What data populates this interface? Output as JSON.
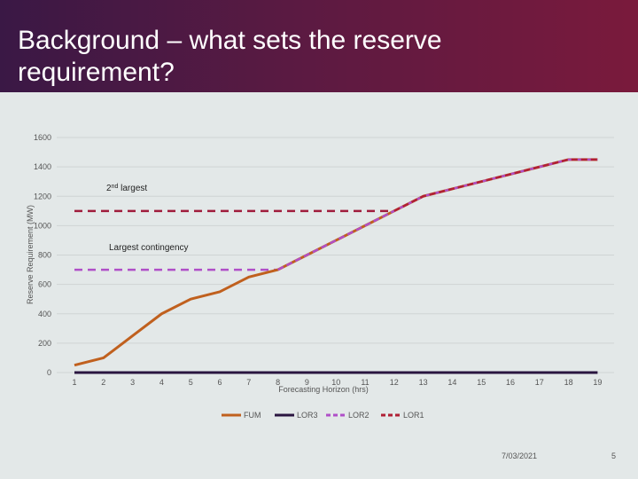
{
  "slide": {
    "title": "Background – what sets the reserve requirement?",
    "date": "7/03/2021",
    "page_number": "5"
  },
  "colors": {
    "FUM": "#c0601e",
    "LOR3": "#2a1540",
    "LOR2": "#b04fc8",
    "LOR1": "#b02035",
    "largest_contingency": "#b04fc8",
    "second_largest": "#a01c3c",
    "grid": "#cfd4d4",
    "tick_text": "#555555"
  },
  "chart_data": {
    "type": "line",
    "xlabel": "Forecasting Horizon (hrs)",
    "ylabel": "Reserve Requirement (MW)",
    "x": [
      1,
      2,
      3,
      4,
      5,
      6,
      7,
      8,
      9,
      10,
      11,
      12,
      13,
      14,
      15,
      16,
      17,
      18,
      19
    ],
    "ylim": [
      0,
      1600
    ],
    "yticks": [
      0,
      200,
      400,
      600,
      800,
      1000,
      1200,
      1400,
      1600
    ],
    "grid": true,
    "legend_position": "bottom",
    "series": [
      {
        "name": "FUM",
        "values": [
          50,
          100,
          250,
          400,
          500,
          550,
          650,
          700,
          800,
          900,
          1000,
          1100,
          1200,
          1250,
          1300,
          1350,
          1400,
          1450,
          1450
        ]
      },
      {
        "name": "LOR3",
        "values": [
          0,
          0,
          0,
          0,
          0,
          0,
          0,
          0,
          0,
          0,
          0,
          0,
          0,
          0,
          0,
          0,
          0,
          0,
          0
        ]
      },
      {
        "name": "LOR2",
        "values": [
          null,
          null,
          null,
          null,
          null,
          null,
          null,
          700,
          800,
          900,
          1000,
          1100,
          1200,
          1250,
          1300,
          1350,
          1400,
          1450,
          1450
        ]
      },
      {
        "name": "LOR1",
        "values": [
          null,
          null,
          null,
          null,
          null,
          null,
          null,
          null,
          null,
          null,
          null,
          1100,
          1200,
          1250,
          1300,
          1350,
          1400,
          1450,
          1450
        ]
      }
    ],
    "reference_lines": [
      {
        "label": "Largest contingency",
        "value": 700,
        "x_from": 1,
        "x_to": 8
      },
      {
        "label_main": "2",
        "label_sup": "nd",
        "label_rest": " largest",
        "value": 1100,
        "x_from": 1,
        "x_to": 12
      }
    ]
  }
}
